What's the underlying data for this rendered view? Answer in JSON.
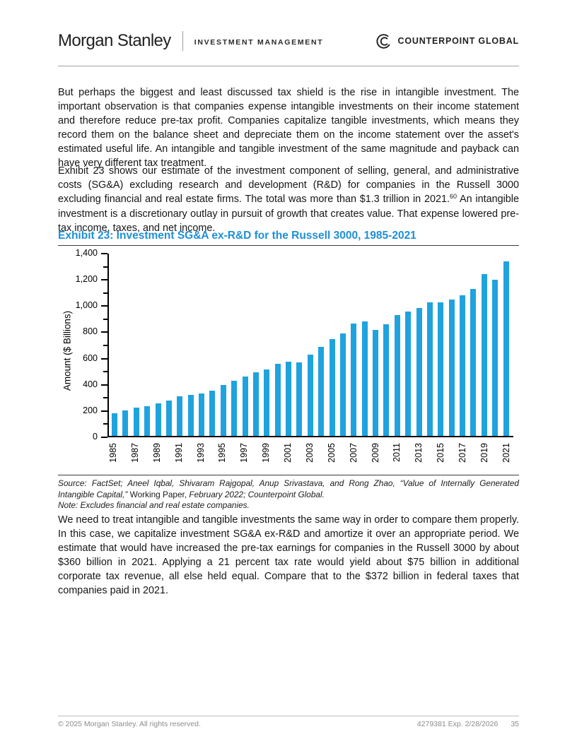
{
  "header": {
    "brand": "Morgan Stanley",
    "division": "INVESTMENT MANAGEMENT",
    "right_brand": "COUNTERPOINT GLOBAL"
  },
  "paragraphs": {
    "p1": "But perhaps the biggest and least discussed tax shield is the rise in intangible investment. The important observation is that companies expense intangible investments on their income statement and therefore reduce pre-tax profit. Companies capitalize tangible investments, which means they record them on the balance sheet and depreciate them on the income statement over the asset's estimated useful life. An intangible and tangible investment of the same magnitude and payback can have very different tax treatment.",
    "p2_before": "Exhibit 23 shows our estimate of the investment component of selling, general, and administrative costs (SG&A) excluding research and development (R&D) for companies in the Russell 3000 excluding financial and real estate firms. The total was more than $1.3 trillion in 2021.",
    "p2_sup": "60",
    "p2_after": " An intangible investment is a discretionary outlay in pursuit of growth that creates value. That expense lowered pre-tax income, taxes, and net income.",
    "p3": "We need to treat intangible and tangible investments the same way in order to compare them properly. In this case, we capitalize investment SG&A ex-R&D and amortize it over an appropriate period. We estimate that would have increased the pre-tax earnings for companies in the Russell 3000 by about $360 billion in 2021. Applying a 21 percent tax rate would yield about $75 billion in additional corporate tax revenue, all else held equal. Compare that to the $372 billion in federal taxes that companies paid in 2021."
  },
  "exhibit": {
    "title": "Exhibit 23: Investment SG&A ex-R&D for the Russell 3000, 1985-2021"
  },
  "chart_data": {
    "type": "bar",
    "title": "Exhibit 23: Investment SG&A ex-R&D for the Russell 3000, 1985-2021",
    "xlabel": "",
    "ylabel": "Amount ($ Billions)",
    "ylim": [
      0,
      1400
    ],
    "ytick_step": 200,
    "ytick_minor_step": 100,
    "yticklabels": [
      "0",
      "200",
      "400",
      "600",
      "800",
      "1,000",
      "1,200",
      "1,400"
    ],
    "grid": false,
    "legend": "none",
    "bar_color": "#1fa3de",
    "categories": [
      1985,
      1986,
      1987,
      1988,
      1989,
      1990,
      1991,
      1992,
      1993,
      1994,
      1995,
      1996,
      1997,
      1998,
      1999,
      2000,
      2001,
      2002,
      2003,
      2004,
      2005,
      2006,
      2007,
      2008,
      2009,
      2010,
      2011,
      2012,
      2013,
      2014,
      2015,
      2016,
      2017,
      2018,
      2019,
      2020,
      2021
    ],
    "values": [
      170,
      195,
      215,
      225,
      245,
      270,
      300,
      310,
      325,
      345,
      390,
      420,
      450,
      485,
      505,
      550,
      565,
      560,
      620,
      680,
      735,
      780,
      855,
      870,
      805,
      850,
      920,
      945,
      975,
      1020,
      1020,
      1040,
      1070,
      1120,
      1235,
      1190,
      1330
    ],
    "xticklabels": [
      "1985",
      "1987",
      "1989",
      "1991",
      "1993",
      "1995",
      "1997",
      "1999",
      "2001",
      "2003",
      "2005",
      "2007",
      "2009",
      "2011",
      "2013",
      "2015",
      "2017",
      "2019",
      "2021"
    ]
  },
  "source": {
    "italic1": "Source: FactSet; Aneel Iqbal, Shivaram Rajgopal, Anup Srivastava, and Rong Zhao, “Value of Internally Generated Intangible Capital,” ",
    "normal": "Working Paper, ",
    "italic2": "February 2022; Counterpoint Global.",
    "note": "Note: Excludes financial and real estate companies."
  },
  "footer": {
    "left": "© 2025 Morgan Stanley. All rights reserved.",
    "right": "4279381 Exp. 2/28/2026",
    "page": "35"
  },
  "colors": {
    "exhibit_title_blue": "#1e8fd6",
    "bar_blue": "#1fa3de",
    "footer_gray": "#8c8c8c"
  }
}
